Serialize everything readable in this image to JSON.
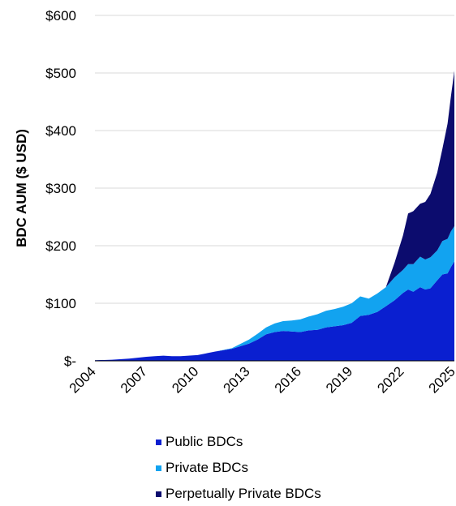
{
  "chart_data": {
    "type": "area",
    "stacked": true,
    "title": "",
    "xlabel": "",
    "ylabel": "BDC AUM ($ USD)",
    "ylim": [
      0,
      600
    ],
    "xlim": [
      2004,
      2025
    ],
    "yticks": [
      {
        "value": 0,
        "label": "$-"
      },
      {
        "value": 100,
        "label": "$100"
      },
      {
        "value": 200,
        "label": "$200"
      },
      {
        "value": 300,
        "label": "$300"
      },
      {
        "value": 400,
        "label": "$400"
      },
      {
        "value": 500,
        "label": "$500"
      },
      {
        "value": 600,
        "label": "$600"
      }
    ],
    "xticks": [
      {
        "value": 2004,
        "label": "2004"
      },
      {
        "value": 2007,
        "label": "2007"
      },
      {
        "value": 2010,
        "label": "2010"
      },
      {
        "value": 2013,
        "label": "2013"
      },
      {
        "value": 2016,
        "label": "2016"
      },
      {
        "value": 2019,
        "label": "2019"
      },
      {
        "value": 2022,
        "label": "2022"
      },
      {
        "value": 2025,
        "label": "2025"
      }
    ],
    "grid": "horizontal",
    "legend_position": "bottom",
    "x": [
      2004,
      2005,
      2006,
      2007,
      2007.5,
      2008,
      2008.5,
      2009,
      2010,
      2011,
      2012,
      2013,
      2013.5,
      2014,
      2014.5,
      2015,
      2015.5,
      2016,
      2016.5,
      2017,
      2017.5,
      2018,
      2018.5,
      2019,
      2019.5,
      2020,
      2020.5,
      2021,
      2021.5,
      2022,
      2022.3,
      2022.6,
      2023,
      2023.3,
      2023.6,
      2024,
      2024.3,
      2024.6,
      2024.8,
      2025
    ],
    "series": [
      {
        "name": "Public BDCs",
        "color": "#0a1fd0",
        "values": [
          1,
          2,
          4,
          7,
          8,
          9,
          8,
          8,
          10,
          16,
          21,
          30,
          37,
          46,
          50,
          52,
          51,
          50,
          53,
          54,
          58,
          60,
          62,
          66,
          78,
          80,
          85,
          95,
          105,
          118,
          124,
          120,
          128,
          124,
          126,
          140,
          150,
          152,
          163,
          173
        ]
      },
      {
        "name": "Private BDCs",
        "color": "#12a3f0",
        "values": [
          0,
          0,
          0,
          0,
          0,
          0,
          0,
          0,
          0,
          0,
          1,
          7,
          10,
          12,
          15,
          17,
          19,
          22,
          24,
          27,
          29,
          30,
          32,
          34,
          34,
          28,
          32,
          33,
          40,
          40,
          44,
          48,
          53,
          52,
          54,
          52,
          58,
          60,
          62,
          61
        ]
      },
      {
        "name": "Perpetually Private BDCs",
        "color": "#0c0c6e",
        "values": [
          0,
          0,
          0,
          0,
          0,
          0,
          0,
          0,
          0,
          0,
          0,
          0,
          0,
          0,
          0,
          0,
          0,
          0,
          0,
          0,
          0,
          0,
          0,
          0,
          0,
          0,
          0,
          0,
          25,
          60,
          88,
          92,
          92,
          100,
          110,
          135,
          160,
          200,
          235,
          270
        ]
      }
    ]
  }
}
